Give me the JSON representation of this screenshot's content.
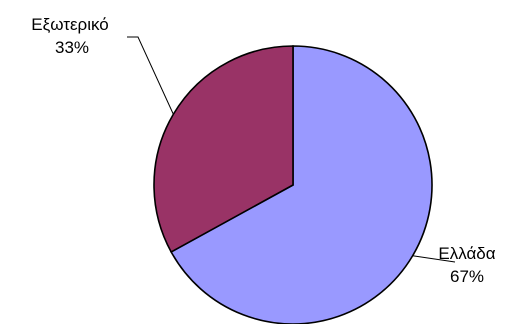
{
  "chart_data": {
    "type": "pie",
    "categories": [
      "Ελλάδα",
      "Εξωτερικό"
    ],
    "values": [
      67,
      33
    ],
    "data_labels": [
      "67%",
      "33%"
    ],
    "colors": [
      "#9999ff",
      "#993366"
    ],
    "title": "",
    "legend": "none"
  }
}
